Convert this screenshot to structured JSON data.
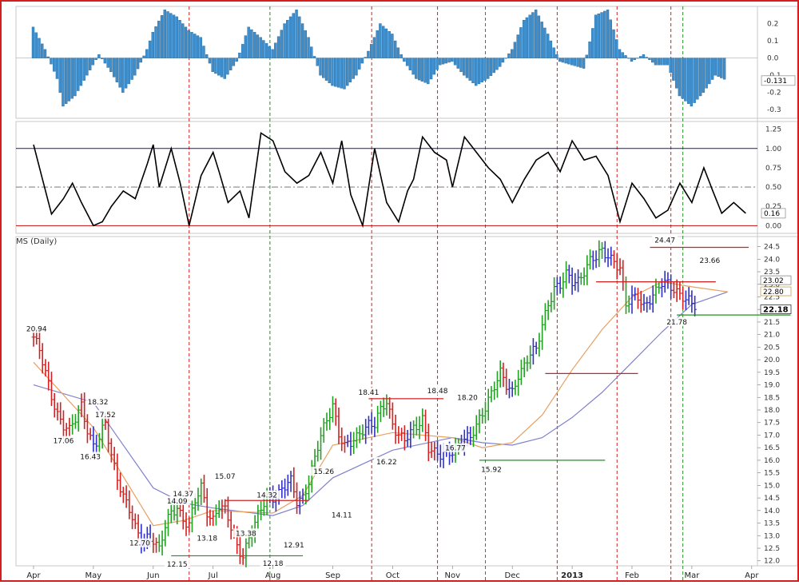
{
  "chart_data": {
    "type": "ohlc",
    "title": "MS (Daily)",
    "colors": {
      "frame": "#d21f1f",
      "histogram": "#3d8fcf",
      "up_bar": "#22a022",
      "down_bar": "#d42020",
      "neutral_bar": "#3030c8",
      "fast_ma": "#e8a060",
      "slow_ma": "#8080d0",
      "red_vline": "#d02020",
      "green_vline": "#209020"
    },
    "x_axis": {
      "months": [
        "Apr",
        "May",
        "Jun",
        "Jul",
        "Aug",
        "Sep",
        "Oct",
        "Nov",
        "Dec",
        "2013",
        "Feb",
        "Mar",
        "Apr"
      ],
      "month_index": [
        0,
        1,
        2,
        3,
        4,
        5,
        6,
        7,
        8,
        9,
        10,
        11,
        12
      ]
    },
    "histogram_panel": {
      "ylim": [
        -0.35,
        0.3
      ],
      "ticks": [
        "0.2",
        "0.1",
        "0.0",
        "-0.1",
        "-0.2",
        "-0.3"
      ],
      "tick_values": [
        0.2,
        0.1,
        0.0,
        -0.1,
        -0.2,
        -0.3
      ],
      "last_label": "-0.131",
      "last_value": -0.131,
      "x": [
        0,
        0.2,
        0.4,
        0.5,
        0.7,
        0.9,
        1.1,
        1.3,
        1.5,
        1.7,
        1.9,
        2.0,
        2.2,
        2.4,
        2.6,
        2.8,
        3.0,
        3.2,
        3.4,
        3.6,
        3.8,
        4.0,
        4.2,
        4.4,
        4.6,
        4.8,
        5.0,
        5.2,
        5.4,
        5.6,
        5.8,
        6.0,
        6.2,
        6.4,
        6.6,
        6.8,
        7.0,
        7.2,
        7.4,
        7.6,
        7.8,
        8.0,
        8.2,
        8.4,
        8.6,
        8.8,
        9.0,
        9.2,
        9.4,
        9.6,
        9.8,
        10.0,
        10.2,
        10.4,
        10.6,
        10.8,
        11.0,
        11.2,
        11.4,
        11.6
      ],
      "values": [
        0.18,
        0.05,
        -0.12,
        -0.28,
        -0.22,
        -0.1,
        0.02,
        -0.08,
        -0.2,
        -0.1,
        0.05,
        0.15,
        0.28,
        0.24,
        0.16,
        0.12,
        -0.08,
        -0.12,
        -0.02,
        0.18,
        0.12,
        0.05,
        0.2,
        0.28,
        0.12,
        -0.1,
        -0.16,
        -0.18,
        -0.1,
        0.04,
        0.2,
        0.14,
        -0.02,
        -0.12,
        -0.15,
        -0.04,
        -0.02,
        -0.1,
        -0.16,
        -0.12,
        -0.05,
        0.05,
        0.22,
        0.28,
        0.14,
        -0.02,
        -0.04,
        -0.06,
        0.25,
        0.28,
        0.05,
        -0.02,
        0.02,
        -0.04,
        -0.04,
        -0.22,
        -0.28,
        -0.2,
        -0.1,
        -0.131
      ]
    },
    "oscillator_panel": {
      "ylim": [
        -0.1,
        1.35
      ],
      "ticks": [
        "1.25",
        "1.00",
        "0.75",
        "0.50",
        "0.25",
        "0.00"
      ],
      "tick_values": [
        1.25,
        1.0,
        0.75,
        0.5,
        0.25,
        0.0
      ],
      "last_label": "0.16",
      "last_value": 0.16,
      "x": [
        0,
        0.15,
        0.3,
        0.5,
        0.65,
        0.8,
        1.0,
        1.15,
        1.3,
        1.5,
        1.7,
        1.9,
        2.0,
        2.1,
        2.3,
        2.45,
        2.6,
        2.8,
        3.0,
        3.1,
        3.25,
        3.45,
        3.6,
        3.8,
        4.0,
        4.2,
        4.4,
        4.6,
        4.8,
        5.0,
        5.15,
        5.3,
        5.5,
        5.7,
        5.9,
        6.1,
        6.25,
        6.35,
        6.5,
        6.7,
        6.9,
        7.0,
        7.2,
        7.4,
        7.6,
        7.8,
        8.0,
        8.2,
        8.4,
        8.6,
        8.8,
        9.0,
        9.2,
        9.4,
        9.6,
        9.8,
        10.0,
        10.2,
        10.4,
        10.6,
        10.8,
        11.0,
        11.2,
        11.35,
        11.5,
        11.7,
        11.9
      ],
      "values": [
        1.05,
        0.6,
        0.15,
        0.35,
        0.55,
        0.3,
        0.0,
        0.05,
        0.25,
        0.45,
        0.35,
        0.8,
        1.05,
        0.5,
        1.0,
        0.55,
        0.0,
        0.65,
        0.95,
        0.7,
        0.3,
        0.45,
        0.1,
        1.2,
        1.1,
        0.7,
        0.55,
        0.65,
        0.95,
        0.55,
        1.1,
        0.4,
        0.0,
        1.0,
        0.3,
        0.05,
        0.45,
        0.6,
        1.15,
        0.95,
        0.85,
        0.5,
        1.15,
        0.95,
        0.75,
        0.6,
        0.3,
        0.6,
        0.85,
        0.95,
        0.7,
        1.1,
        0.85,
        0.9,
        0.65,
        0.05,
        0.55,
        0.35,
        0.1,
        0.2,
        0.55,
        0.3,
        0.75,
        0.45,
        0.16,
        0.3,
        0.16
      ]
    },
    "price_panel": {
      "ylim": [
        11.8,
        24.9
      ],
      "ticks": [
        "24.5",
        "24.0",
        "23.5",
        "23.0",
        "22.5",
        "22.0",
        "21.5",
        "21.0",
        "20.5",
        "20.0",
        "19.5",
        "19.0",
        "18.5",
        "18.0",
        "17.5",
        "17.0",
        "16.5",
        "16.0",
        "15.5",
        "15.0",
        "14.5",
        "14.0",
        "13.5",
        "13.0",
        "12.5",
        "12.0"
      ],
      "tick_values": [
        24.5,
        24.0,
        23.5,
        23.0,
        22.5,
        22.0,
        21.5,
        21.0,
        20.5,
        20.0,
        19.5,
        19.0,
        18.5,
        18.0,
        17.5,
        17.0,
        16.5,
        16.0,
        15.5,
        15.0,
        14.5,
        14.0,
        13.5,
        13.0,
        12.5,
        12.0
      ],
      "right_labels": [
        "23.02",
        "22.80",
        "22.18"
      ],
      "right_label_values": [
        23.02,
        22.8,
        22.18
      ],
      "x": [
        0,
        0.1,
        0.2,
        0.3,
        0.4,
        0.5,
        0.6,
        0.7,
        0.8,
        0.9,
        1.0,
        1.1,
        1.2,
        1.3,
        1.4,
        1.5,
        1.6,
        1.7,
        1.8,
        1.9,
        2.0,
        2.1,
        2.2,
        2.3,
        2.4,
        2.5,
        2.6,
        2.7,
        2.8,
        2.9,
        3.0,
        3.1,
        3.2,
        3.3,
        3.4,
        3.5,
        3.6,
        3.7,
        3.8,
        3.9,
        4.0,
        4.1,
        4.2,
        4.3,
        4.4,
        4.5,
        4.6,
        4.7,
        4.8,
        4.9,
        5.0,
        5.1,
        5.2,
        5.3,
        5.4,
        5.5,
        5.6,
        5.7,
        5.8,
        5.9,
        6.0,
        6.1,
        6.2,
        6.3,
        6.4,
        6.5,
        6.6,
        6.7,
        6.8,
        6.9,
        7.0,
        7.1,
        7.2,
        7.3,
        7.4,
        7.5,
        7.6,
        7.7,
        7.8,
        7.9,
        8.0,
        8.1,
        8.2,
        8.3,
        8.4,
        8.5,
        8.6,
        8.7,
        8.8,
        8.9,
        9.0,
        9.1,
        9.2,
        9.3,
        9.4,
        9.5,
        9.6,
        9.7,
        9.8,
        9.9,
        10.0,
        10.1,
        10.2,
        10.3,
        10.4,
        10.5,
        10.6,
        10.7,
        10.8,
        10.9,
        11.0,
        11.1,
        11.2,
        11.3,
        11.4,
        11.5,
        11.6,
        11.7,
        11.8
      ],
      "close": [
        20.9,
        20.3,
        19.4,
        18.6,
        17.9,
        17.4,
        17.1,
        17.6,
        18.2,
        17.3,
        16.6,
        16.8,
        17.4,
        16.2,
        15.4,
        14.6,
        14.0,
        13.2,
        12.8,
        13.0,
        12.9,
        12.4,
        13.3,
        13.9,
        14.2,
        13.7,
        13.4,
        14.3,
        14.9,
        14.0,
        13.7,
        14.2,
        13.9,
        13.3,
        12.6,
        12.3,
        12.9,
        13.4,
        14.0,
        14.6,
        14.6,
        14.7,
        14.9,
        15.1,
        14.4,
        14.6,
        15.2,
        16.0,
        16.9,
        17.6,
        18.3,
        17.1,
        16.5,
        16.6,
        16.9,
        17.3,
        17.5,
        17.4,
        17.9,
        18.3,
        17.5,
        17.1,
        16.8,
        17.0,
        17.3,
        17.7,
        16.6,
        16.3,
        16.1,
        16.2,
        16.4,
        16.7,
        16.9,
        16.8,
        17.3,
        17.9,
        18.5,
        19.0,
        19.4,
        18.9,
        18.7,
        19.5,
        19.8,
        20.2,
        20.3,
        21.4,
        22.3,
        22.9,
        22.9,
        23.3,
        23.1,
        23.2,
        23.6,
        23.9,
        24.0,
        24.3,
        24.2,
        24.0,
        23.6,
        22.1,
        22.4,
        22.6,
        22.2,
        22.4,
        22.6,
        23.0,
        23.1,
        22.9,
        22.6,
        22.3,
        22.18,
        22.1,
        22.18,
        22.18,
        22.18,
        22.18,
        22.18,
        22.18,
        22.18
      ],
      "hide_after_index": 111,
      "fast_ma": {
        "name": "fast MA",
        "x": [
          0,
          1,
          2,
          2.5,
          3,
          4,
          4.5,
          5,
          6,
          7,
          7.5,
          8,
          8.5,
          9,
          9.5,
          10,
          10.5,
          11,
          11.6
        ],
        "values": [
          19.9,
          17.3,
          13.4,
          13.6,
          14.0,
          13.9,
          14.6,
          16.6,
          17.1,
          16.9,
          16.5,
          16.7,
          17.8,
          19.6,
          21.2,
          22.5,
          23.1,
          22.9,
          22.7
        ]
      },
      "slow_ma": {
        "name": "slow MA",
        "x": [
          0,
          1,
          2,
          2.5,
          3,
          4,
          4.5,
          5,
          6,
          7,
          7.5,
          8,
          8.5,
          9,
          9.5,
          10,
          10.5,
          11,
          11.6
        ],
        "values": [
          19.0,
          18.3,
          14.9,
          14.3,
          14.1,
          13.8,
          14.2,
          15.3,
          16.4,
          16.9,
          16.7,
          16.6,
          16.9,
          17.7,
          18.7,
          19.9,
          21.1,
          22.2,
          22.7
        ]
      },
      "labels": [
        {
          "text": "20.94",
          "x": 0.05,
          "y": 20.94,
          "pos": "above"
        },
        {
          "text": "18.32",
          "x": 0.85,
          "y": 18.32,
          "pos": "right"
        },
        {
          "text": "17.06",
          "x": 0.5,
          "y": 17.06,
          "pos": "below"
        },
        {
          "text": "17.52",
          "x": 1.2,
          "y": 17.52,
          "pos": "above"
        },
        {
          "text": "16.43",
          "x": 0.95,
          "y": 16.43,
          "pos": "below"
        },
        {
          "text": "14.09",
          "x": 2.4,
          "y": 14.09,
          "pos": "above"
        },
        {
          "text": "14.37",
          "x": 2.5,
          "y": 14.37,
          "pos": "above"
        },
        {
          "text": "15.07",
          "x": 3.2,
          "y": 15.07,
          "pos": "above"
        },
        {
          "text": "14.32",
          "x": 3.9,
          "y": 14.32,
          "pos": "above"
        },
        {
          "text": "13.18",
          "x": 2.9,
          "y": 13.18,
          "pos": "below"
        },
        {
          "text": "13.38",
          "x": 3.55,
          "y": 13.38,
          "pos": "below"
        },
        {
          "text": "12.70",
          "x": 2.0,
          "y": 12.7,
          "pos": "left"
        },
        {
          "text": "12.15",
          "x": 2.4,
          "y": 12.15,
          "pos": "below"
        },
        {
          "text": "12.18",
          "x": 4.0,
          "y": 12.18,
          "pos": "below"
        },
        {
          "text": "12.91",
          "x": 4.35,
          "y": 12.91,
          "pos": "below"
        },
        {
          "text": "15.26",
          "x": 4.85,
          "y": 15.26,
          "pos": "above"
        },
        {
          "text": "14.11",
          "x": 5.15,
          "y": 14.11,
          "pos": "below"
        },
        {
          "text": "18.41",
          "x": 5.6,
          "y": 18.41,
          "pos": "above"
        },
        {
          "text": "16.22",
          "x": 5.9,
          "y": 16.22,
          "pos": "below"
        },
        {
          "text": "18.48",
          "x": 6.75,
          "y": 18.48,
          "pos": "above"
        },
        {
          "text": "18.20",
          "x": 7.25,
          "y": 18.2,
          "pos": "above"
        },
        {
          "text": "16.77",
          "x": 7.05,
          "y": 16.77,
          "pos": "below"
        },
        {
          "text": "15.92",
          "x": 7.65,
          "y": 15.92,
          "pos": "below"
        },
        {
          "text": "24.47",
          "x": 10.55,
          "y": 24.47,
          "pos": "above"
        },
        {
          "text": "23.66",
          "x": 11.3,
          "y": 23.66,
          "pos": "above"
        },
        {
          "text": "21.78",
          "x": 10.75,
          "y": 21.78,
          "pos": "below"
        }
      ],
      "hlines": [
        {
          "color": "red",
          "y": 14.4,
          "x0": 3.2,
          "x1": 4.6
        },
        {
          "color": "green",
          "y": 12.2,
          "x0": 2.3,
          "x1": 4.5
        },
        {
          "color": "red",
          "y": 18.45,
          "x0": 5.6,
          "x1": 6.85
        },
        {
          "color": "green",
          "y": 16.0,
          "x0": 7.45,
          "x1": 9.55
        },
        {
          "color": "red",
          "y": 19.45,
          "x0": 8.55,
          "x1": 10.1
        },
        {
          "color": "red",
          "y": 23.1,
          "x0": 9.4,
          "x1": 11.4
        },
        {
          "color": "red",
          "y": 24.47,
          "x0": 10.3,
          "x1": 11.95
        },
        {
          "color": "green",
          "y": 21.78,
          "x0": 10.75,
          "x1": 12.65
        }
      ]
    },
    "vlines": [
      {
        "color": "red",
        "x": 2.6
      },
      {
        "color": "green",
        "x": 3.95
      },
      {
        "color": "red",
        "x": 5.65
      },
      {
        "color": "red",
        "x": 6.75
      },
      {
        "color": "green",
        "x": 7.55
      },
      {
        "color": "red",
        "x": 8.75
      },
      {
        "color": "red",
        "x": 9.75
      },
      {
        "color": "red",
        "x": 10.65
      },
      {
        "color": "green",
        "x": 10.85
      }
    ]
  }
}
